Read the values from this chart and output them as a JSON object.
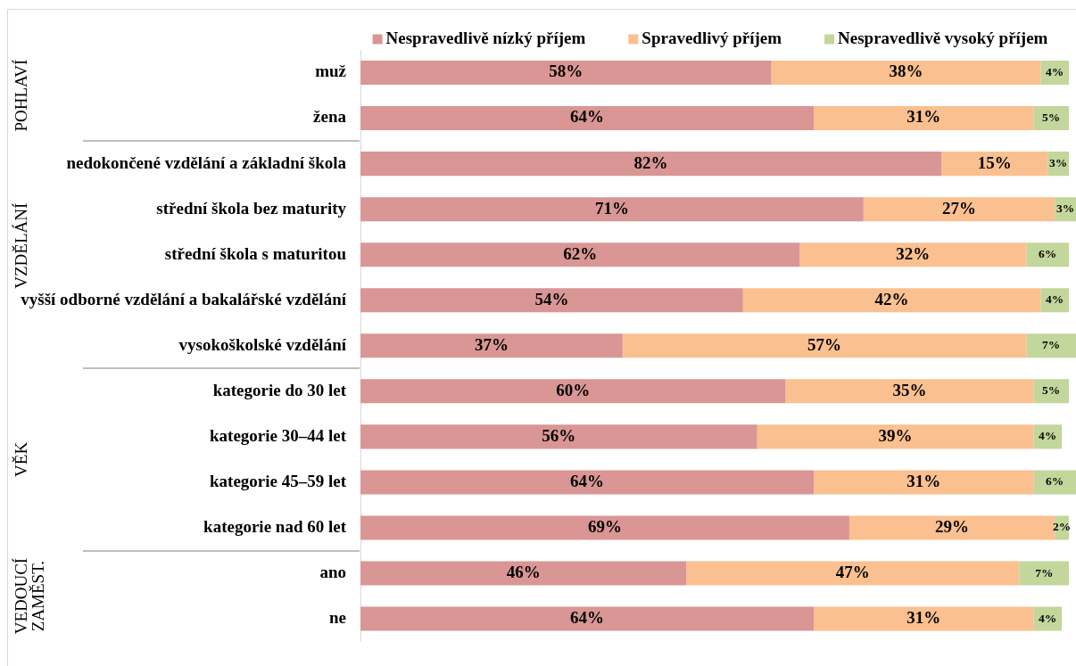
{
  "chart_data": {
    "type": "bar",
    "orientation": "horizontal",
    "stacked": true,
    "legend": "top",
    "categories": [
      "muž",
      "žena",
      "nedokončené vzdělání a základní škola",
      "střední škola bez maturity",
      "střední škola s maturitou",
      "vyšší odborné vzdělání a bakalářské vzdělání",
      "vysokoškolské vzdělání",
      "kategorie do 30 let",
      "kategorie 30–44 let",
      "kategorie 45–59 let",
      "kategorie nad 60 let",
      "ano",
      "ne"
    ],
    "series": [
      {
        "name": "Nespravedlivě nízký příjem",
        "color": "#d99694",
        "values": [
          58,
          64,
          82,
          71,
          62,
          54,
          37,
          60,
          56,
          64,
          69,
          46,
          64
        ],
        "value_labels": [
          "58%",
          "64%",
          "82%",
          "71%",
          "62%",
          "54%",
          "37%",
          "60%",
          "56%",
          "64%",
          "69%",
          "46%",
          "64%"
        ]
      },
      {
        "name": "Spravedlivý příjem",
        "color": "#fac090",
        "values": [
          38,
          31,
          15,
          27,
          32,
          42,
          57,
          35,
          39,
          31,
          29,
          47,
          31
        ],
        "value_labels": [
          "38%",
          "31%",
          "15%",
          "27%",
          "32%",
          "42%",
          "57%",
          "35%",
          "39%",
          "31%",
          "29%",
          "47%",
          "31%"
        ]
      },
      {
        "name": "Nespravedlivě vysoký příjem",
        "color": "#c3d69b",
        "values": [
          4,
          5,
          3,
          3,
          6,
          4,
          7,
          5,
          4,
          6,
          2,
          7,
          4
        ],
        "value_labels": [
          "4%",
          "5%",
          "3%",
          "3%",
          "6%",
          "4%",
          "7%",
          "5%",
          "4%",
          "6%",
          "2%",
          "7%",
          "4%"
        ]
      }
    ],
    "annotations": [
      "POHLAVÍ",
      "VZDĚLÁNÍ",
      "VĚK",
      "VEDOUCÍ ZAMĚST."
    ]
  }
}
